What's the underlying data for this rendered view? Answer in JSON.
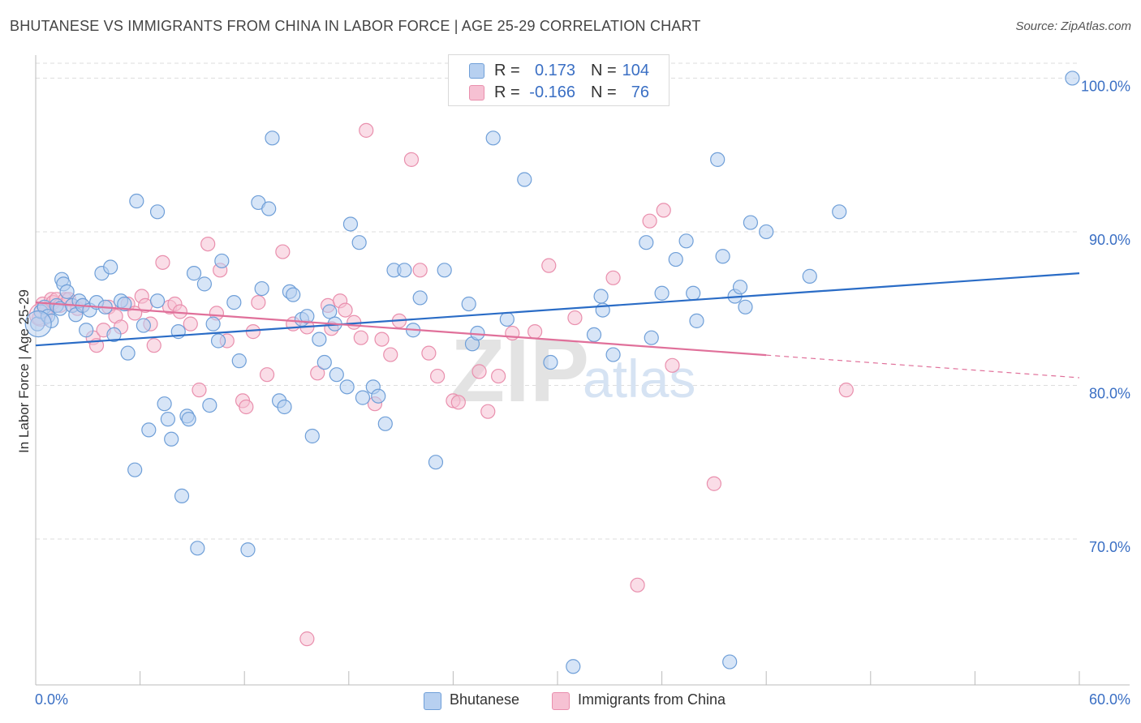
{
  "title": "BHUTANESE VS IMMIGRANTS FROM CHINA IN LABOR FORCE | AGE 25-29 CORRELATION CHART",
  "source": "Source: ZipAtlas.com",
  "watermark": {
    "zip": "ZIP",
    "atlas": "atlas"
  },
  "legend": {
    "rows": [
      {
        "r_label": "R =",
        "r_value": "0.173",
        "n_label": "N =",
        "n_value": "104"
      },
      {
        "r_label": "R =",
        "r_value": "-0.166",
        "n_label": "N =",
        "n_value": "76"
      }
    ]
  },
  "bottom_legend": {
    "series1": "Bhutanese",
    "series2": "Immigrants from China"
  },
  "colors": {
    "blue_fill": "#b7d0f0",
    "blue_stroke": "#6f9fd8",
    "blue_line": "#2a6cc6",
    "pink_fill": "#f6c1d3",
    "pink_stroke": "#e98fad",
    "pink_line": "#e0709a",
    "grid": "#dddddd",
    "tick_text": "#3a6fc4"
  },
  "chart_data": {
    "type": "scatter",
    "title": "BHUTANESE VS IMMIGRANTS FROM CHINA IN LABOR FORCE | AGE 25-29 CORRELATION CHART",
    "xlabel": "",
    "ylabel": "In Labor Force | Age 25-29",
    "xlim": [
      0,
      60
    ],
    "ylim": [
      60.5,
      101.5
    ],
    "x_tick_labels": [
      "0.0%",
      "60.0%"
    ],
    "y_ticks": [
      70,
      80,
      90,
      100
    ],
    "y_tick_labels": [
      "70.0%",
      "80.0%",
      "90.0%",
      "100.0%"
    ],
    "grid": true,
    "legend_position": "top-center",
    "series": [
      {
        "name": "Bhutanese",
        "r": 0.173,
        "n": 104,
        "trend": {
          "x": [
            0,
            60
          ],
          "y": [
            82.6,
            87.3
          ]
        },
        "points": [
          [
            0.1,
            84.0
          ],
          [
            0.3,
            84.8
          ],
          [
            0.5,
            85.1
          ],
          [
            0.7,
            84.5
          ],
          [
            0.9,
            84.2
          ],
          [
            1.2,
            85.2
          ],
          [
            1.4,
            85.0
          ],
          [
            1.5,
            86.9
          ],
          [
            1.6,
            86.6
          ],
          [
            1.8,
            86.1
          ],
          [
            2.1,
            85.2
          ],
          [
            2.3,
            84.6
          ],
          [
            2.5,
            85.5
          ],
          [
            2.7,
            85.2
          ],
          [
            2.9,
            83.6
          ],
          [
            3.1,
            84.9
          ],
          [
            3.5,
            85.4
          ],
          [
            3.8,
            87.3
          ],
          [
            4.0,
            85.1
          ],
          [
            4.3,
            87.7
          ],
          [
            4.5,
            83.3
          ],
          [
            4.9,
            85.5
          ],
          [
            5.1,
            85.3
          ],
          [
            5.3,
            82.1
          ],
          [
            5.8,
            92.0
          ],
          [
            5.7,
            74.5
          ],
          [
            6.2,
            83.9
          ],
          [
            6.5,
            77.1
          ],
          [
            7.0,
            91.3
          ],
          [
            7.0,
            85.5
          ],
          [
            7.4,
            78.8
          ],
          [
            7.6,
            77.8
          ],
          [
            7.8,
            76.5
          ],
          [
            8.2,
            83.5
          ],
          [
            8.4,
            72.8
          ],
          [
            8.7,
            78.0
          ],
          [
            8.8,
            77.8
          ],
          [
            9.1,
            87.3
          ],
          [
            9.3,
            69.4
          ],
          [
            9.7,
            86.6
          ],
          [
            10.0,
            78.7
          ],
          [
            10.2,
            84.0
          ],
          [
            10.5,
            82.9
          ],
          [
            10.7,
            88.1
          ],
          [
            11.4,
            85.4
          ],
          [
            11.7,
            81.6
          ],
          [
            12.2,
            69.3
          ],
          [
            12.8,
            91.9
          ],
          [
            13.0,
            86.3
          ],
          [
            13.4,
            91.5
          ],
          [
            13.6,
            96.1
          ],
          [
            14.0,
            79.0
          ],
          [
            14.3,
            78.6
          ],
          [
            14.6,
            86.1
          ],
          [
            14.8,
            85.9
          ],
          [
            15.3,
            84.3
          ],
          [
            15.6,
            84.5
          ],
          [
            15.9,
            76.7
          ],
          [
            16.3,
            83.0
          ],
          [
            16.6,
            81.5
          ],
          [
            16.9,
            84.8
          ],
          [
            17.2,
            84.0
          ],
          [
            17.3,
            80.7
          ],
          [
            17.9,
            79.9
          ],
          [
            18.1,
            90.5
          ],
          [
            18.6,
            89.3
          ],
          [
            18.8,
            79.2
          ],
          [
            19.4,
            79.9
          ],
          [
            19.7,
            79.3
          ],
          [
            20.1,
            77.5
          ],
          [
            20.6,
            87.5
          ],
          [
            21.2,
            87.5
          ],
          [
            21.7,
            83.6
          ],
          [
            22.1,
            85.7
          ],
          [
            23.0,
            75.0
          ],
          [
            23.5,
            87.5
          ],
          [
            24.9,
            85.3
          ],
          [
            25.1,
            82.7
          ],
          [
            25.4,
            83.4
          ],
          [
            26.3,
            96.1
          ],
          [
            27.1,
            84.3
          ],
          [
            28.1,
            93.4
          ],
          [
            29.6,
            81.5
          ],
          [
            30.9,
            61.7
          ],
          [
            32.1,
            83.3
          ],
          [
            32.5,
            85.8
          ],
          [
            32.6,
            84.9
          ],
          [
            33.2,
            82.0
          ],
          [
            35.1,
            89.3
          ],
          [
            35.4,
            83.1
          ],
          [
            36.0,
            86.0
          ],
          [
            36.8,
            88.2
          ],
          [
            37.4,
            89.4
          ],
          [
            37.8,
            86.0
          ],
          [
            38.0,
            84.2
          ],
          [
            39.2,
            94.7
          ],
          [
            39.5,
            88.4
          ],
          [
            39.9,
            62.0
          ],
          [
            40.2,
            85.8
          ],
          [
            40.5,
            86.4
          ],
          [
            40.8,
            85.1
          ],
          [
            41.1,
            90.6
          ],
          [
            42.0,
            90.0
          ],
          [
            44.5,
            87.1
          ],
          [
            46.2,
            91.3
          ],
          [
            59.6,
            100.0
          ]
        ]
      },
      {
        "name": "Immigrants from China",
        "r": -0.166,
        "n": 76,
        "trend": {
          "x": [
            0,
            60
          ],
          "y": [
            85.4,
            80.5
          ]
        },
        "points": [
          [
            0.2,
            84.4
          ],
          [
            0.4,
            85.3
          ],
          [
            0.6,
            84.9
          ],
          [
            0.9,
            85.6
          ],
          [
            1.0,
            85.4
          ],
          [
            1.2,
            85.6
          ],
          [
            1.4,
            85.2
          ],
          [
            1.7,
            85.6
          ],
          [
            1.9,
            85.6
          ],
          [
            2.1,
            85.2
          ],
          [
            2.4,
            85.0
          ],
          [
            2.7,
            85.2
          ],
          [
            3.3,
            83.1
          ],
          [
            3.5,
            82.6
          ],
          [
            3.9,
            83.6
          ],
          [
            4.2,
            85.1
          ],
          [
            4.6,
            84.5
          ],
          [
            4.9,
            83.8
          ],
          [
            5.3,
            85.3
          ],
          [
            5.7,
            84.7
          ],
          [
            6.1,
            85.8
          ],
          [
            6.3,
            85.2
          ],
          [
            6.6,
            84.0
          ],
          [
            6.8,
            82.6
          ],
          [
            7.3,
            88.0
          ],
          [
            7.7,
            85.1
          ],
          [
            8.0,
            85.3
          ],
          [
            8.3,
            84.8
          ],
          [
            8.9,
            84.0
          ],
          [
            9.4,
            79.7
          ],
          [
            9.9,
            89.2
          ],
          [
            10.4,
            84.7
          ],
          [
            10.6,
            87.5
          ],
          [
            11.0,
            82.9
          ],
          [
            11.9,
            79.0
          ],
          [
            12.1,
            78.6
          ],
          [
            12.5,
            83.5
          ],
          [
            12.8,
            85.4
          ],
          [
            13.3,
            80.7
          ],
          [
            14.2,
            88.7
          ],
          [
            14.8,
            84.0
          ],
          [
            15.6,
            83.8
          ],
          [
            16.2,
            80.8
          ],
          [
            16.8,
            85.2
          ],
          [
            17.0,
            83.7
          ],
          [
            17.5,
            85.5
          ],
          [
            17.8,
            84.9
          ],
          [
            18.3,
            84.1
          ],
          [
            18.7,
            83.1
          ],
          [
            19.0,
            96.6
          ],
          [
            19.5,
            78.8
          ],
          [
            19.9,
            83.0
          ],
          [
            20.4,
            82.0
          ],
          [
            20.9,
            84.2
          ],
          [
            21.6,
            94.7
          ],
          [
            22.1,
            87.5
          ],
          [
            22.6,
            82.1
          ],
          [
            23.1,
            80.6
          ],
          [
            24.0,
            79.0
          ],
          [
            24.3,
            78.9
          ],
          [
            25.5,
            80.9
          ],
          [
            26.0,
            78.3
          ],
          [
            26.6,
            80.6
          ],
          [
            27.4,
            83.4
          ],
          [
            28.7,
            83.5
          ],
          [
            29.5,
            87.8
          ],
          [
            32.1,
            100.0
          ],
          [
            33.2,
            87.0
          ],
          [
            34.6,
            67.0
          ],
          [
            35.3,
            90.7
          ],
          [
            36.1,
            91.4
          ],
          [
            36.6,
            81.3
          ],
          [
            39.0,
            73.6
          ],
          [
            46.6,
            79.7
          ],
          [
            15.6,
            63.5
          ],
          [
            31.0,
            84.4
          ]
        ]
      }
    ]
  }
}
